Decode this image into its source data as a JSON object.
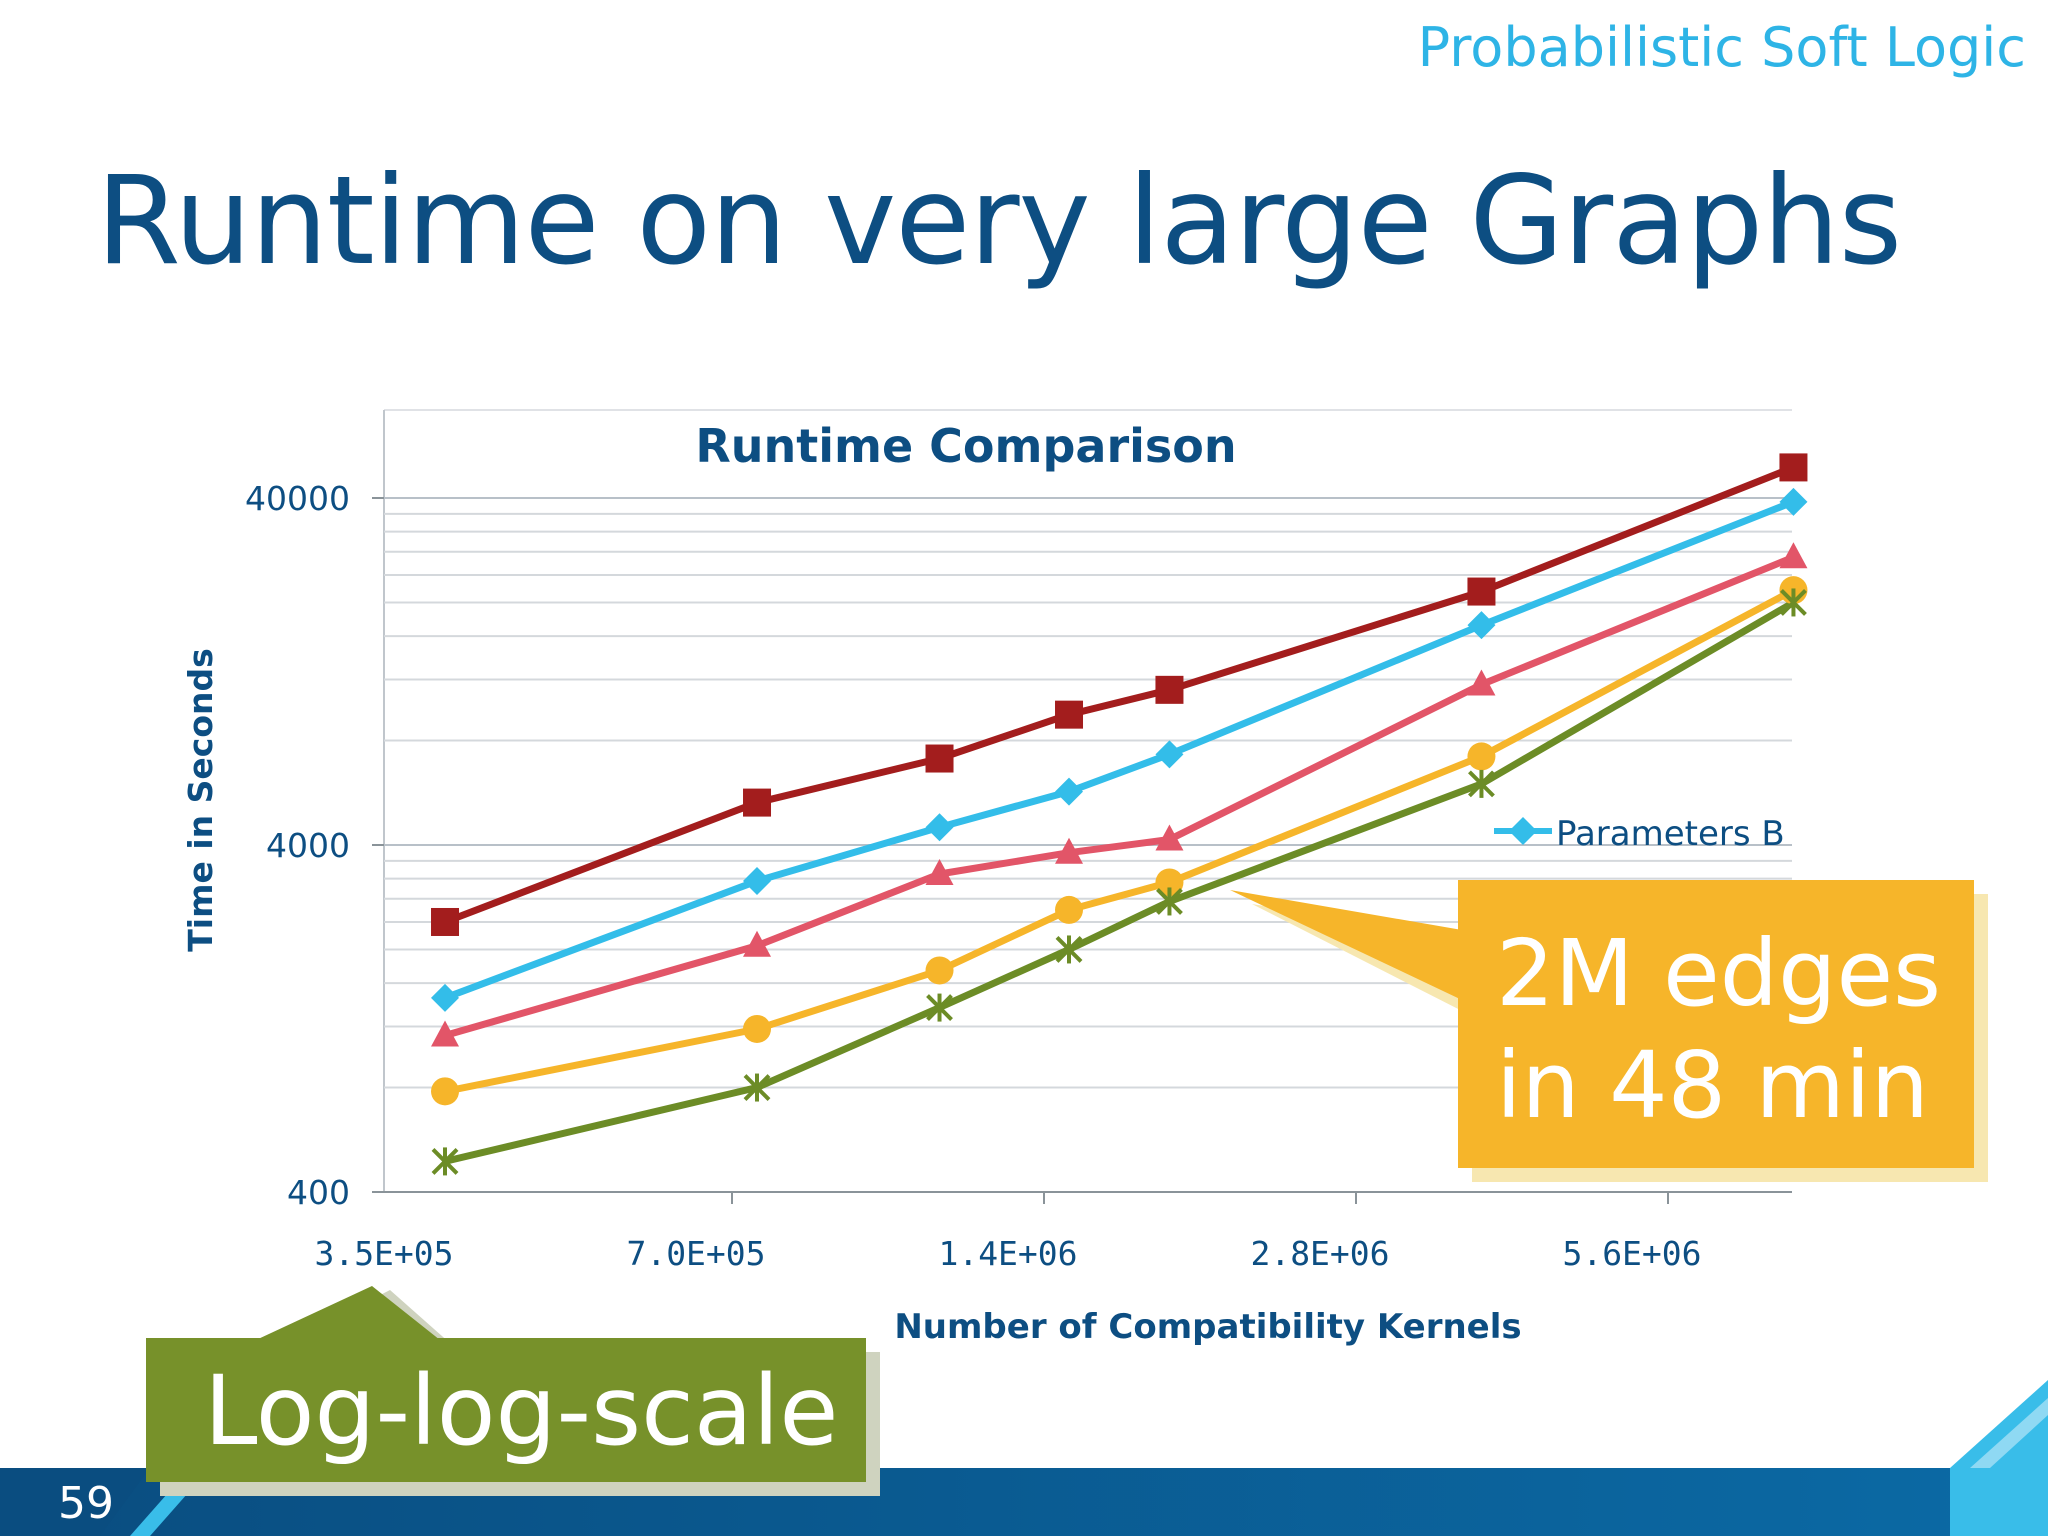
{
  "slide": {
    "brand": "Probabilistic Soft Logic",
    "title": "Runtime on very large Graphs",
    "number": "59",
    "colors": {
      "title": "#0d4e82",
      "brand": "#2eb4e6",
      "footer_band": "#0b5a92",
      "footer_accent": "#39bde9"
    }
  },
  "callouts": {
    "edges": {
      "line1": "2M edges",
      "line2": "in 48 min",
      "color": "#f6b52a"
    },
    "log": {
      "text": "Log-log-scale",
      "color": "#77912a"
    }
  },
  "chart_data": {
    "type": "line",
    "title": "Runtime Comparison",
    "xlabel": "Number of Compatibility Kernels",
    "ylabel": "Time in Seconds",
    "x_scale": "log",
    "y_scale": "log",
    "x_ticks": [
      350000,
      700000,
      1400000,
      2800000,
      5600000
    ],
    "x_tick_labels": [
      "3.5E+05",
      "7.0E+05",
      "1.4E+06",
      "2.8E+06",
      "5.6E+06"
    ],
    "y_ticks": [
      400,
      4000,
      40000
    ],
    "y_tick_labels": [
      "400",
      "4000",
      "40000"
    ],
    "ylim": [
      400,
      60000
    ],
    "x": [
      370000,
      740000,
      1110000,
      1480000,
      1850000,
      3700000,
      7400000
    ],
    "legend_position": "right",
    "grid": true,
    "series": [
      {
        "legend": "",
        "color": "#a31d1d",
        "marker": "square",
        "values": [
          2400,
          5300,
          7100,
          9500,
          11200,
          21500,
          49000
        ]
      },
      {
        "name": "Parameters B",
        "legend": "Parameters B",
        "color": "#33bde9",
        "marker": "diamond",
        "values": [
          1450,
          3150,
          4500,
          5700,
          7300,
          17200,
          39000
        ]
      },
      {
        "legend": "",
        "color": "#e25568",
        "marker": "triangle",
        "values": [
          1130,
          2050,
          3300,
          3800,
          4150,
          11600,
          27000
        ]
      },
      {
        "legend": "",
        "color": "#f6b52a",
        "marker": "circle",
        "values": [
          780,
          1180,
          1740,
          2600,
          3120,
          7200,
          21700
        ]
      },
      {
        "legend": "",
        "color": "#6c8c26",
        "marker": "star",
        "values": [
          490,
          800,
          1360,
          2000,
          2750,
          6000,
          20000
        ]
      }
    ]
  }
}
